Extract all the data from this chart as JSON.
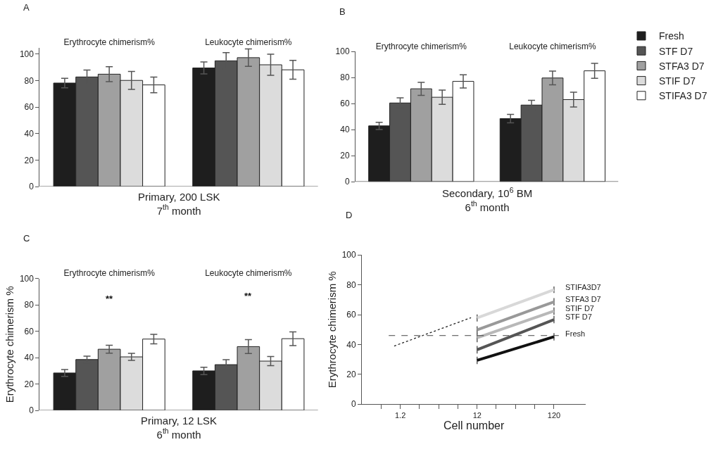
{
  "chart_data": [
    {
      "type": "bar",
      "title": "A",
      "xlabel": "Primary, 200 LSK\n7$^{th}$ month",
      "categories": [
        "Erythrocyte chimerism%",
        "Leukocyte chimerism%"
      ],
      "ylim": [
        0,
        105
      ],
      "yticks": [
        0,
        20,
        40,
        60,
        80,
        100
      ],
      "legend": false,
      "series": [
        {
          "color": "#1e1e1e",
          "values": [
            78.2,
            89.6
          ],
          "errors": [
            3.6,
            4.5
          ]
        },
        {
          "color": "#555555",
          "values": [
            82.8,
            95
          ],
          "errors": [
            5.2,
            6.2
          ]
        },
        {
          "color": "#a0a0a0",
          "values": [
            84.9,
            97.4
          ],
          "errors": [
            5.7,
            6.6
          ]
        },
        {
          "color": "#dcdcdc",
          "values": [
            80.2,
            92
          ],
          "errors": [
            6.8,
            8
          ]
        },
        {
          "color": "#ffffff",
          "values": [
            76.8,
            88.2
          ],
          "errors": [
            5.9,
            7.1
          ]
        }
      ]
    },
    {
      "type": "bar",
      "title": "B",
      "xlabel": "Secondary, 10$^{6}$ BM\n6$^{th}$ month",
      "categories": [
        "Erythrocyte chimerism%",
        "Leukocyte chimerism%"
      ],
      "ylim": [
        0,
        100
      ],
      "yticks": [
        0,
        20,
        40,
        60,
        80,
        100
      ],
      "legend": "right",
      "series": [
        {
          "name": "Fresh",
          "color": "#1e1e1e",
          "values": [
            42.9,
            48.5
          ],
          "errors": [
            2.8,
            3.2
          ]
        },
        {
          "name": "STF D7",
          "color": "#555555",
          "values": [
            60.5,
            58.9
          ],
          "errors": [
            3.9,
            3.7
          ]
        },
        {
          "name": "STFA3 D7",
          "color": "#a0a0a0",
          "values": [
            71.4,
            79.7
          ],
          "errors": [
            5,
            5.3
          ]
        },
        {
          "name": "STIF D7",
          "color": "#dcdcdc",
          "values": [
            64.9,
            63.1
          ],
          "errors": [
            5.5,
            5.7
          ]
        },
        {
          "name": "STIFA3 D7",
          "color": "#ffffff",
          "values": [
            77.1,
            85.2
          ],
          "errors": [
            5.1,
            5.8
          ]
        }
      ]
    },
    {
      "type": "bar",
      "title": "C",
      "xlabel": "Primary, 12 LSK\n6$^{th}$ month",
      "ylabel": "Erythrocyte chimerism %",
      "categories": [
        "Erythrocyte chimerism%",
        "Leukocyte chimerism%"
      ],
      "ylim": [
        0,
        100
      ],
      "yticks": [
        0,
        20,
        40,
        60,
        80,
        100
      ],
      "legend": false,
      "annotations": [
        "**",
        "**"
      ],
      "series": [
        {
          "color": "#1e1e1e",
          "values": [
            28.4,
            30
          ],
          "errors": [
            2.6,
            2.8
          ]
        },
        {
          "color": "#555555",
          "values": [
            38.6,
            34.7
          ],
          "errors": [
            2.6,
            3.8
          ]
        },
        {
          "color": "#a0a0a0",
          "values": [
            46.4,
            48.4
          ],
          "errors": [
            3,
            5.3
          ]
        },
        {
          "color": "#dcdcdc",
          "values": [
            40.6,
            37.4
          ],
          "errors": [
            2.7,
            3.5
          ]
        },
        {
          "color": "#ffffff",
          "values": [
            54.1,
            54.4
          ],
          "errors": [
            3.6,
            5.2
          ]
        }
      ]
    },
    {
      "type": "line",
      "title": "D",
      "xlabel": "Cell number",
      "ylabel": "Erythrocyte chimerism %",
      "log": "x",
      "xlim": [
        0.38,
        310
      ],
      "xticks": [
        {
          "value": 0.675,
          "label": null
        },
        1.2,
        {
          "value": 2.13,
          "label": null
        },
        {
          "value": 3.79,
          "label": null
        },
        {
          "value": 6.75,
          "label": null
        },
        12,
        {
          "value": 21.3,
          "label": null
        },
        {
          "value": 37.9,
          "label": null
        },
        {
          "value": 67.5,
          "label": null
        },
        120
      ],
      "ylim": [
        0,
        100
      ],
      "yticks": [
        0,
        20,
        40,
        60,
        80,
        100
      ],
      "legend": false,
      "ref_lines": [
        {
          "axis": "y",
          "value": 46,
          "line_style": "dashed",
          "color": "#444444"
        }
      ],
      "series": [
        {
          "name": "Fresh",
          "color": "#111111",
          "x": [
            12,
            120
          ],
          "values": [
            29.4,
            45.2
          ],
          "errors": [
            2.5,
            2.5
          ]
        },
        {
          "name": "STF D7",
          "color": "#555555",
          "x": [
            12,
            120
          ],
          "values": [
            36.5,
            56.7
          ],
          "errors": [
            2.5,
            2.5
          ]
        },
        {
          "name": "STIF D7",
          "color": "#b8b8b8",
          "x": [
            12,
            120
          ],
          "values": [
            44.5,
            62.4
          ],
          "errors": [
            3,
            2.5
          ]
        },
        {
          "name": "STFA3 D7",
          "color": "#999999",
          "x": [
            12,
            120
          ],
          "values": [
            49.8,
            68.6
          ],
          "errors": [
            2.5,
            2.5
          ]
        },
        {
          "name": "STIFA3D7",
          "color": "#d8d8d8",
          "x": [
            12,
            120
          ],
          "values": [
            57.8,
            76.7
          ],
          "errors": [
            2.4,
            2.2
          ]
        },
        {
          "type": "line",
          "color": "#222222",
          "line_style": "dotted",
          "x": [
            1,
            10
          ],
          "values": [
            39,
            58
          ]
        }
      ]
    }
  ]
}
